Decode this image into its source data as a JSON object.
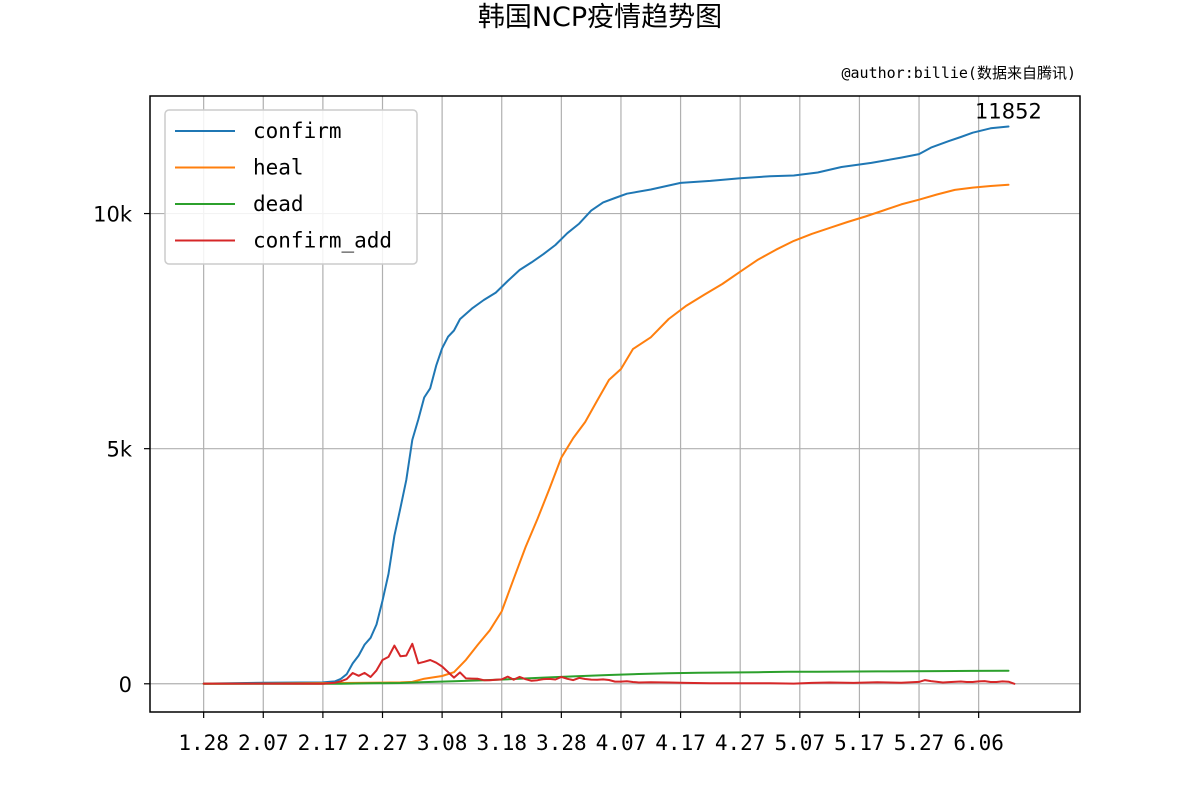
{
  "chart_data": {
    "type": "line",
    "title": "韩国NCP疫情趋势图",
    "subtitle": "@author:billie(数据来自腾讯)",
    "xlabel": "",
    "ylabel": "",
    "x_start": "1.28",
    "x_ticks": [
      "1.28",
      "2.07",
      "2.17",
      "2.27",
      "3.08",
      "3.18",
      "3.28",
      "4.07",
      "4.17",
      "4.27",
      "5.07",
      "5.17",
      "5.27",
      "6.06"
    ],
    "y_ticks": [
      {
        "value": 0,
        "label": "0"
      },
      {
        "value": 5000,
        "label": "5k"
      },
      {
        "value": 10000,
        "label": "10k"
      }
    ],
    "ylim": [
      -600,
      12500
    ],
    "xlim": [
      "1.19",
      "6.23"
    ],
    "grid": true,
    "legend_position": "upper-left",
    "annotation": {
      "text": "11852",
      "x": "6.11",
      "y": 11852
    },
    "series": [
      {
        "name": "confirm",
        "color": "#1f77b4",
        "points": [
          [
            "1.28",
            4
          ],
          [
            "2.07",
            24
          ],
          [
            "2.17",
            30
          ],
          [
            "2.19",
            51
          ],
          [
            "2.20",
            104
          ],
          [
            "2.21",
            204
          ],
          [
            "2.22",
            433
          ],
          [
            "2.23",
            602
          ],
          [
            "2.24",
            833
          ],
          [
            "2.25",
            977
          ],
          [
            "2.26",
            1261
          ],
          [
            "2.27",
            1766
          ],
          [
            "2.28",
            2337
          ],
          [
            "2.29",
            3150
          ],
          [
            "3.01",
            3736
          ],
          [
            "3.02",
            4335
          ],
          [
            "3.03",
            5186
          ],
          [
            "3.04",
            5621
          ],
          [
            "3.05",
            6088
          ],
          [
            "3.06",
            6284
          ],
          [
            "3.07",
            6767
          ],
          [
            "3.08",
            7134
          ],
          [
            "3.09",
            7382
          ],
          [
            "3.10",
            7513
          ],
          [
            "3.11",
            7755
          ],
          [
            "3.13",
            7979
          ],
          [
            "3.15",
            8162
          ],
          [
            "3.17",
            8320
          ],
          [
            "3.19",
            8565
          ],
          [
            "3.21",
            8799
          ],
          [
            "3.23",
            8961
          ],
          [
            "3.25",
            9137
          ],
          [
            "3.27",
            9332
          ],
          [
            "3.29",
            9583
          ],
          [
            "3.31",
            9786
          ],
          [
            "4.02",
            10062
          ],
          [
            "4.04",
            10237
          ],
          [
            "4.06",
            10331
          ],
          [
            "4.08",
            10423
          ],
          [
            "4.12",
            10512
          ],
          [
            "4.17",
            10653
          ],
          [
            "4.22",
            10694
          ],
          [
            "4.27",
            10752
          ],
          [
            "5.02",
            10793
          ],
          [
            "5.06",
            10810
          ],
          [
            "5.10",
            10874
          ],
          [
            "5.14",
            10991
          ],
          [
            "5.19",
            11078
          ],
          [
            "5.24",
            11190
          ],
          [
            "5.27",
            11265
          ],
          [
            "5.29",
            11402
          ],
          [
            "6.01",
            11541
          ],
          [
            "6.03",
            11629
          ],
          [
            "6.05",
            11719
          ],
          [
            "6.08",
            11814
          ],
          [
            "6.11",
            11852
          ]
        ]
      },
      {
        "name": "heal",
        "color": "#ff7f0e",
        "points": [
          [
            "1.28",
            0
          ],
          [
            "2.20",
            16
          ],
          [
            "3.01",
            30
          ],
          [
            "3.03",
            41
          ],
          [
            "3.05",
            108
          ],
          [
            "3.08",
            166
          ],
          [
            "3.10",
            247
          ],
          [
            "3.12",
            510
          ],
          [
            "3.14",
            834
          ],
          [
            "3.16",
            1137
          ],
          [
            "3.18",
            1540
          ],
          [
            "3.20",
            2233
          ],
          [
            "3.22",
            2909
          ],
          [
            "3.24",
            3507
          ],
          [
            "3.26",
            4144
          ],
          [
            "3.28",
            4811
          ],
          [
            "3.30",
            5228
          ],
          [
            "4.01",
            5567
          ],
          [
            "4.03",
            6021
          ],
          [
            "4.05",
            6463
          ],
          [
            "4.07",
            6694
          ],
          [
            "4.09",
            7117
          ],
          [
            "4.12",
            7368
          ],
          [
            "4.15",
            7757
          ],
          [
            "4.18",
            8042
          ],
          [
            "4.21",
            8277
          ],
          [
            "4.24",
            8501
          ],
          [
            "4.27",
            8764
          ],
          [
            "4.30",
            9021
          ],
          [
            "5.03",
            9232
          ],
          [
            "5.06",
            9419
          ],
          [
            "5.09",
            9568
          ],
          [
            "5.12",
            9695
          ],
          [
            "5.15",
            9821
          ],
          [
            "5.18",
            9938
          ],
          [
            "5.21",
            10066
          ],
          [
            "5.24",
            10194
          ],
          [
            "5.27",
            10295
          ],
          [
            "5.30",
            10405
          ],
          [
            "6.02",
            10503
          ],
          [
            "6.05",
            10552
          ],
          [
            "6.08",
            10586
          ],
          [
            "6.11",
            10611
          ]
        ]
      },
      {
        "name": "dead",
        "color": "#2ca02c",
        "points": [
          [
            "1.28",
            0
          ],
          [
            "2.20",
            1
          ],
          [
            "2.25",
            11
          ],
          [
            "3.01",
            17
          ],
          [
            "3.05",
            35
          ],
          [
            "3.10",
            54
          ],
          [
            "3.15",
            75
          ],
          [
            "3.20",
            102
          ],
          [
            "3.25",
            131
          ],
          [
            "3.30",
            158
          ],
          [
            "4.05",
            186
          ],
          [
            "4.10",
            208
          ],
          [
            "4.15",
            225
          ],
          [
            "4.20",
            236
          ],
          [
            "4.25",
            240
          ],
          [
            "4.30",
            247
          ],
          [
            "5.05",
            254
          ],
          [
            "5.10",
            256
          ],
          [
            "5.20",
            263
          ],
          [
            "5.30",
            270
          ],
          [
            "6.05",
            273
          ],
          [
            "6.11",
            276
          ]
        ]
      },
      {
        "name": "confirm_add",
        "color": "#d62728",
        "points": [
          [
            "1.28",
            4
          ],
          [
            "2.17",
            1
          ],
          [
            "2.19",
            20
          ],
          [
            "2.20",
            53
          ],
          [
            "2.21",
            100
          ],
          [
            "2.22",
            229
          ],
          [
            "2.23",
            169
          ],
          [
            "2.24",
            231
          ],
          [
            "2.25",
            144
          ],
          [
            "2.26",
            284
          ],
          [
            "2.27",
            505
          ],
          [
            "2.28",
            571
          ],
          [
            "2.29",
            813
          ],
          [
            "3.01",
            586
          ],
          [
            "3.02",
            599
          ],
          [
            "3.03",
            851
          ],
          [
            "3.04",
            435
          ],
          [
            "3.05",
            467
          ],
          [
            "3.06",
            505
          ],
          [
            "3.07",
            448
          ],
          [
            "3.08",
            367
          ],
          [
            "3.09",
            248
          ],
          [
            "3.10",
            131
          ],
          [
            "3.11",
            242
          ],
          [
            "3.12",
            114
          ],
          [
            "3.13",
            110
          ],
          [
            "3.14",
            107
          ],
          [
            "3.15",
            76
          ],
          [
            "3.16",
            74
          ],
          [
            "3.17",
            84
          ],
          [
            "3.18",
            93
          ],
          [
            "3.19",
            152
          ],
          [
            "3.20",
            87
          ],
          [
            "3.21",
            147
          ],
          [
            "3.22",
            98
          ],
          [
            "3.23",
            64
          ],
          [
            "3.24",
            76
          ],
          [
            "3.25",
            100
          ],
          [
            "3.26",
            104
          ],
          [
            "3.27",
            91
          ],
          [
            "3.28",
            146
          ],
          [
            "3.29",
            105
          ],
          [
            "3.30",
            78
          ],
          [
            "3.31",
            125
          ],
          [
            "4.01",
            101
          ],
          [
            "4.02",
            89
          ],
          [
            "4.03",
            86
          ],
          [
            "4.04",
            94
          ],
          [
            "4.05",
            81
          ],
          [
            "4.06",
            47
          ],
          [
            "4.07",
            47
          ],
          [
            "4.08",
            53
          ],
          [
            "4.09",
            39
          ],
          [
            "4.10",
            27
          ],
          [
            "4.12",
            32
          ],
          [
            "4.15",
            27
          ],
          [
            "4.18",
            18
          ],
          [
            "4.22",
            11
          ],
          [
            "4.27",
            10
          ],
          [
            "5.02",
            13
          ],
          [
            "5.06",
            4
          ],
          [
            "5.09",
            18
          ],
          [
            "5.12",
            27
          ],
          [
            "5.16",
            19
          ],
          [
            "5.20",
            32
          ],
          [
            "5.24",
            23
          ],
          [
            "5.27",
            40
          ],
          [
            "5.28",
            79
          ],
          [
            "5.29",
            58
          ],
          [
            "5.31",
            27
          ],
          [
            "6.01",
            35
          ],
          [
            "6.03",
            49
          ],
          [
            "6.04",
            39
          ],
          [
            "6.05",
            39
          ],
          [
            "6.06",
            51
          ],
          [
            "6.07",
            57
          ],
          [
            "6.08",
            38
          ],
          [
            "6.09",
            38
          ],
          [
            "6.10",
            50
          ],
          [
            "6.11",
            45
          ],
          [
            "6.12",
            0
          ]
        ]
      }
    ]
  }
}
